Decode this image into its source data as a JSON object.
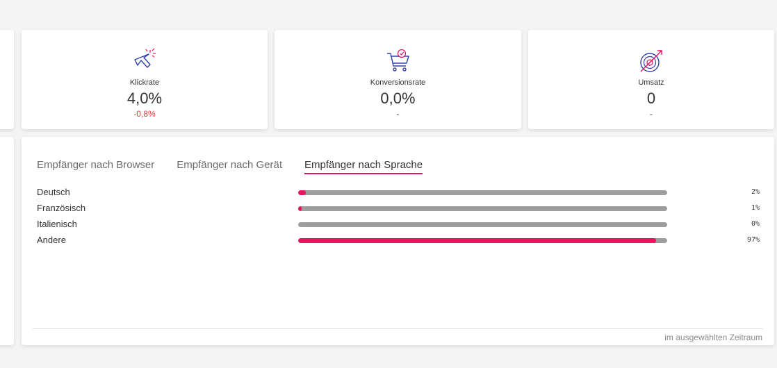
{
  "kpis": [
    {
      "icon": "cursor-click-icon",
      "label": "Klickrate",
      "value": "4,0%",
      "delta": "-0,8%"
    },
    {
      "icon": "shopping-cart-check-icon",
      "label": "Konversionsrate",
      "value": "0,0%",
      "delta": "-"
    },
    {
      "icon": "target-arrow-icon",
      "label": "Umsatz",
      "value": "0",
      "delta": "-"
    }
  ],
  "tabs": [
    {
      "label": "Empfänger nach Browser",
      "active": false
    },
    {
      "label": "Empfänger nach Gerät",
      "active": false
    },
    {
      "label": "Empfänger nach Sprache",
      "active": true
    }
  ],
  "languages": [
    {
      "label": "Deutsch",
      "percent_text": "2%",
      "fill_percent": 2
    },
    {
      "label": "Französisch",
      "percent_text": "1%",
      "fill_percent": 1
    },
    {
      "label": "Italienisch",
      "percent_text": "0%",
      "fill_percent": 0
    },
    {
      "label": "Andere",
      "percent_text": "97%",
      "fill_percent": 97
    }
  ],
  "footer_text": "im ausgewählten Zeitraum",
  "colors": {
    "accent": "#f0135e",
    "negative": "#e53935",
    "icon_blue": "#2f3fb0",
    "track": "#9e9e9e"
  }
}
